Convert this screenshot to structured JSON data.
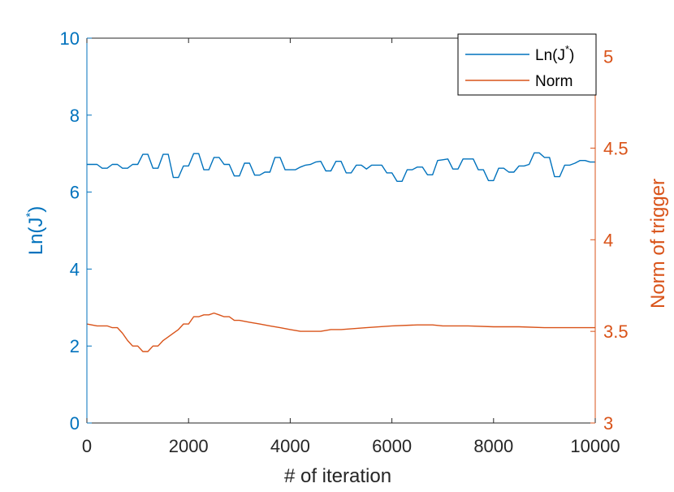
{
  "chart_data": {
    "type": "line",
    "xlabel": "# of iteration",
    "ylabel_left": {
      "base": "Ln(J",
      "sup": "*",
      "close": ")"
    },
    "ylabel_right": "Norm of trigger",
    "xlim": [
      0,
      10000
    ],
    "ylim_left": [
      0,
      10
    ],
    "ylim_right": [
      3,
      5.1
    ],
    "xticks": [
      0,
      2000,
      4000,
      6000,
      8000,
      10000
    ],
    "yticks_left": [
      0,
      2,
      4,
      6,
      8,
      10
    ],
    "yticks_right": [
      3,
      3.5,
      4,
      4.5,
      5
    ],
    "legend": {
      "position": "top-right",
      "items": [
        {
          "base": "Ln(J",
          "sup": "*",
          "close": ")"
        },
        {
          "base": "Norm"
        }
      ]
    },
    "grid": false,
    "colors": {
      "left": "#0072bd",
      "right": "#d95319",
      "axes": "#262626"
    },
    "series": [
      {
        "name": "Ln(J*)",
        "axis": "left",
        "x": [
          0,
          100,
          200,
          300,
          400,
          500,
          600,
          700,
          800,
          900,
          1000,
          1100,
          1200,
          1300,
          1400,
          1500,
          1600,
          1700,
          1800,
          1900,
          2000,
          2100,
          2200,
          2300,
          2400,
          2500,
          2600,
          2700,
          2800,
          2900,
          3000,
          3100,
          3200,
          3300,
          3400,
          3500,
          3600,
          3700,
          3800,
          3900,
          4000,
          4100,
          4200,
          4300,
          4400,
          4500,
          4600,
          4700,
          4800,
          4900,
          5000,
          5100,
          5200,
          5300,
          5400,
          5500,
          5600,
          5700,
          5800,
          5900,
          6000,
          6100,
          6200,
          6300,
          6400,
          6500,
          6600,
          6700,
          6800,
          6900,
          7000,
          7100,
          7200,
          7300,
          7400,
          7500,
          7600,
          7700,
          7800,
          7900,
          8000,
          8100,
          8200,
          8300,
          8400,
          8500,
          8600,
          8700,
          8800,
          8900,
          9000,
          9100,
          9200,
          9300,
          9400,
          9500,
          9600,
          9700,
          9800,
          9900,
          10000
        ],
        "values": [
          6.72,
          6.72,
          6.72,
          6.62,
          6.62,
          6.72,
          6.72,
          6.62,
          6.62,
          6.72,
          6.72,
          6.98,
          6.98,
          6.62,
          6.62,
          6.98,
          6.98,
          6.38,
          6.38,
          6.68,
          6.68,
          7.0,
          7.0,
          6.58,
          6.58,
          6.9,
          6.9,
          6.72,
          6.72,
          6.42,
          6.42,
          6.75,
          6.75,
          6.44,
          6.44,
          6.52,
          6.52,
          6.9,
          6.9,
          6.58,
          6.58,
          6.58,
          6.65,
          6.7,
          6.72,
          6.78,
          6.8,
          6.55,
          6.55,
          6.8,
          6.8,
          6.5,
          6.5,
          6.7,
          6.7,
          6.6,
          6.7,
          6.7,
          6.7,
          6.5,
          6.5,
          6.28,
          6.28,
          6.58,
          6.58,
          6.65,
          6.65,
          6.45,
          6.45,
          6.82,
          6.84,
          6.86,
          6.6,
          6.6,
          6.86,
          6.86,
          6.86,
          6.58,
          6.58,
          6.3,
          6.3,
          6.62,
          6.62,
          6.52,
          6.52,
          6.68,
          6.68,
          6.72,
          7.02,
          7.02,
          6.9,
          6.9,
          6.4,
          6.4,
          6.7,
          6.7,
          6.75,
          6.82,
          6.82,
          6.78,
          6.78
        ]
      },
      {
        "name": "Norm",
        "axis": "right",
        "x": [
          0,
          200,
          400,
          500,
          600,
          700,
          800,
          900,
          1000,
          1100,
          1200,
          1300,
          1400,
          1500,
          1600,
          1700,
          1800,
          1900,
          2000,
          2100,
          2200,
          2300,
          2400,
          2500,
          2600,
          2700,
          2800,
          2900,
          3000,
          3200,
          3400,
          3600,
          3800,
          4000,
          4200,
          4400,
          4600,
          4800,
          5000,
          5500,
          6000,
          6500,
          6800,
          7000,
          7500,
          8000,
          8500,
          9000,
          9500,
          10000
        ],
        "values": [
          3.54,
          3.53,
          3.53,
          3.52,
          3.52,
          3.49,
          3.45,
          3.42,
          3.42,
          3.39,
          3.39,
          3.42,
          3.42,
          3.45,
          3.47,
          3.49,
          3.51,
          3.54,
          3.54,
          3.58,
          3.58,
          3.59,
          3.59,
          3.6,
          3.59,
          3.58,
          3.58,
          3.56,
          3.56,
          3.55,
          3.54,
          3.53,
          3.52,
          3.51,
          3.5,
          3.5,
          3.5,
          3.51,
          3.51,
          3.52,
          3.53,
          3.535,
          3.535,
          3.53,
          3.53,
          3.525,
          3.525,
          3.52,
          3.52,
          3.52
        ]
      }
    ]
  }
}
